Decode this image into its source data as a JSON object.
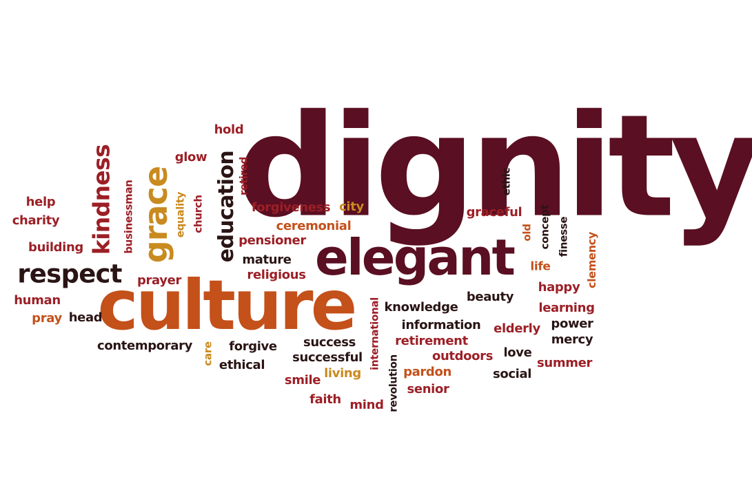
{
  "colors": {
    "maroon": "#5a0f22",
    "red": "#9c1f26",
    "orange": "#c4501a",
    "gold": "#c98a1f",
    "dark": "#2a1414"
  },
  "words": [
    {
      "id": "dignity",
      "text": "dignity",
      "color": "maroon"
    },
    {
      "id": "culture",
      "text": "culture",
      "color": "orange"
    },
    {
      "id": "elegant",
      "text": "elegant",
      "color": "maroon"
    },
    {
      "id": "respect",
      "text": "respect",
      "color": "dark"
    },
    {
      "id": "grace",
      "text": "grace",
      "color": "gold"
    },
    {
      "id": "kindness",
      "text": "kindness",
      "color": "red"
    },
    {
      "id": "education",
      "text": "education",
      "color": "dark"
    },
    {
      "id": "help",
      "text": "help",
      "color": "red"
    },
    {
      "id": "charity",
      "text": "charity",
      "color": "red"
    },
    {
      "id": "building",
      "text": "building",
      "color": "red"
    },
    {
      "id": "human",
      "text": "human",
      "color": "red"
    },
    {
      "id": "pray",
      "text": "pray",
      "color": "orange"
    },
    {
      "id": "head",
      "text": "head",
      "color": "dark"
    },
    {
      "id": "contemporary",
      "text": "contemporary",
      "color": "dark"
    },
    {
      "id": "businessman",
      "text": "businessman",
      "color": "red"
    },
    {
      "id": "prayer",
      "text": "prayer",
      "color": "red"
    },
    {
      "id": "equality",
      "text": "equality",
      "color": "gold"
    },
    {
      "id": "church",
      "text": "church",
      "color": "red"
    },
    {
      "id": "glow",
      "text": "glow",
      "color": "red"
    },
    {
      "id": "hold",
      "text": "hold",
      "color": "red"
    },
    {
      "id": "retired",
      "text": "retired",
      "color": "red"
    },
    {
      "id": "forgiveness",
      "text": "forgiveness",
      "color": "red"
    },
    {
      "id": "city",
      "text": "city",
      "color": "gold"
    },
    {
      "id": "ceremonial",
      "text": "ceremonial",
      "color": "orange"
    },
    {
      "id": "pensioner",
      "text": "pensioner",
      "color": "red"
    },
    {
      "id": "mature",
      "text": "mature",
      "color": "dark"
    },
    {
      "id": "religious",
      "text": "religious",
      "color": "red"
    },
    {
      "id": "care",
      "text": "care",
      "color": "gold"
    },
    {
      "id": "forgive",
      "text": "forgive",
      "color": "dark"
    },
    {
      "id": "ethical",
      "text": "ethical",
      "color": "dark"
    },
    {
      "id": "success",
      "text": "success",
      "color": "dark"
    },
    {
      "id": "successful",
      "text": "successful",
      "color": "dark"
    },
    {
      "id": "smile",
      "text": "smile",
      "color": "red"
    },
    {
      "id": "living",
      "text": "living",
      "color": "gold"
    },
    {
      "id": "faith",
      "text": "faith",
      "color": "red"
    },
    {
      "id": "mind",
      "text": "mind",
      "color": "red"
    },
    {
      "id": "international",
      "text": "international",
      "color": "red"
    },
    {
      "id": "revolution",
      "text": "revolution",
      "color": "dark"
    },
    {
      "id": "knowledge",
      "text": "knowledge",
      "color": "dark"
    },
    {
      "id": "beauty",
      "text": "beauty",
      "color": "dark"
    },
    {
      "id": "information",
      "text": "information",
      "color": "dark"
    },
    {
      "id": "retirement",
      "text": "retirement",
      "color": "red"
    },
    {
      "id": "outdoors",
      "text": "outdoors",
      "color": "red"
    },
    {
      "id": "pardon",
      "text": "pardon",
      "color": "orange"
    },
    {
      "id": "senior",
      "text": "senior",
      "color": "red"
    },
    {
      "id": "love",
      "text": "love",
      "color": "dark"
    },
    {
      "id": "social",
      "text": "social",
      "color": "dark"
    },
    {
      "id": "elderly",
      "text": "elderly",
      "color": "red"
    },
    {
      "id": "power",
      "text": "power",
      "color": "dark"
    },
    {
      "id": "mercy",
      "text": "mercy",
      "color": "dark"
    },
    {
      "id": "summer",
      "text": "summer",
      "color": "red"
    },
    {
      "id": "learning",
      "text": "learning",
      "color": "red"
    },
    {
      "id": "happy",
      "text": "happy",
      "color": "red"
    },
    {
      "id": "life",
      "text": "life",
      "color": "orange"
    },
    {
      "id": "old",
      "text": "old",
      "color": "orange"
    },
    {
      "id": "concept",
      "text": "concept",
      "color": "dark"
    },
    {
      "id": "finesse",
      "text": "finesse",
      "color": "dark"
    },
    {
      "id": "clemency",
      "text": "clemency",
      "color": "orange"
    },
    {
      "id": "graceful",
      "text": "graceful",
      "color": "red"
    },
    {
      "id": "ethic",
      "text": "ethic",
      "color": "dark"
    }
  ]
}
